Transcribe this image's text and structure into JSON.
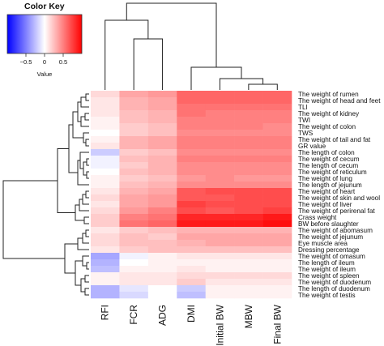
{
  "chart_data": {
    "type": "heatmap",
    "color_key": {
      "title": "Color Key",
      "xlabel": "Value",
      "ticks": [
        "−0.5",
        "0",
        "0.5"
      ],
      "range": [
        -1,
        1
      ],
      "colors": {
        "low": "#0000ff",
        "mid": "#ffffff",
        "high": "#ff0000"
      }
    },
    "columns": [
      "RFI",
      "FCR",
      "ADG",
      "DMI",
      "Initial BW",
      "MBW",
      "Final BW"
    ],
    "rows": [
      "The weight of rumen",
      "The weight of head and feet",
      "TLI",
      "The weight of kidney",
      "TWI",
      "The weight of colon",
      "TWS",
      "The weight of tail and fat",
      "GR value",
      "The length of colon",
      "The weight of cecum",
      "The length of cecum",
      "The weight of reticulum",
      "The weight of lung",
      "The length of jejunum",
      "The weight of heart",
      "The weight of skin and wool",
      "The weight of liver",
      "The weight of perirenal fat",
      "Crass weight",
      "BW before slaughter",
      "The weight of abomasum",
      "The weight of jejunum",
      "Eye muscle area",
      "Dressing percentage",
      "The weight of omasum",
      "The length of ileum",
      "The weight of ileum",
      "The weight of spleen",
      "The weight of duodenum",
      "The length of duodenum",
      "The weight of testis"
    ],
    "values": [
      [
        0.15,
        0.35,
        0.4,
        0.6,
        0.6,
        0.6,
        0.6
      ],
      [
        0.1,
        0.3,
        0.35,
        0.6,
        0.6,
        0.6,
        0.6
      ],
      [
        0.1,
        0.3,
        0.35,
        0.55,
        0.55,
        0.55,
        0.55
      ],
      [
        0.1,
        0.25,
        0.3,
        0.55,
        0.5,
        0.5,
        0.5
      ],
      [
        0.05,
        0.25,
        0.3,
        0.5,
        0.5,
        0.5,
        0.5
      ],
      [
        0.05,
        0.2,
        0.25,
        0.5,
        0.5,
        0.5,
        0.45
      ],
      [
        0.0,
        0.2,
        0.25,
        0.45,
        0.45,
        0.45,
        0.45
      ],
      [
        0.05,
        0.3,
        0.35,
        0.5,
        0.5,
        0.5,
        0.5
      ],
      [
        0.1,
        0.3,
        0.35,
        0.5,
        0.5,
        0.5,
        0.5
      ],
      [
        -0.2,
        0.2,
        0.25,
        0.45,
        0.45,
        0.45,
        0.45
      ],
      [
        -0.05,
        0.25,
        0.3,
        0.5,
        0.5,
        0.5,
        0.5
      ],
      [
        -0.05,
        0.2,
        0.3,
        0.45,
        0.45,
        0.45,
        0.45
      ],
      [
        0.0,
        0.25,
        0.3,
        0.45,
        0.45,
        0.45,
        0.45
      ],
      [
        0.05,
        0.2,
        0.25,
        0.4,
        0.45,
        0.4,
        0.4
      ],
      [
        0.05,
        0.25,
        0.3,
        0.45,
        0.45,
        0.45,
        0.45
      ],
      [
        0.1,
        0.3,
        0.35,
        0.65,
        0.7,
        0.7,
        0.7
      ],
      [
        0.15,
        0.35,
        0.4,
        0.65,
        0.65,
        0.7,
        0.7
      ],
      [
        0.1,
        0.35,
        0.4,
        0.75,
        0.7,
        0.7,
        0.7
      ],
      [
        0.15,
        0.4,
        0.5,
        0.7,
        0.65,
        0.7,
        0.75
      ],
      [
        0.2,
        0.5,
        0.55,
        0.85,
        0.85,
        0.85,
        0.9
      ],
      [
        0.2,
        0.55,
        0.6,
        0.9,
        0.9,
        0.9,
        0.95
      ],
      [
        0.1,
        0.2,
        0.25,
        0.3,
        0.3,
        0.3,
        0.3
      ],
      [
        0.15,
        0.25,
        0.2,
        0.35,
        0.35,
        0.35,
        0.35
      ],
      [
        0.15,
        0.25,
        0.25,
        0.3,
        0.35,
        0.35,
        0.35
      ],
      [
        0.1,
        0.2,
        0.25,
        0.25,
        0.25,
        0.25,
        0.25
      ],
      [
        -0.35,
        -0.05,
        0.05,
        0.1,
        0.1,
        0.1,
        0.1
      ],
      [
        -0.3,
        0.0,
        0.05,
        0.05,
        0.05,
        0.05,
        0.05
      ],
      [
        -0.25,
        0.05,
        0.05,
        0.1,
        0.05,
        0.05,
        0.05
      ],
      [
        0.05,
        0.1,
        0.1,
        0.15,
        0.15,
        0.15,
        0.15
      ],
      [
        0.05,
        0.1,
        0.1,
        0.2,
        0.1,
        0.1,
        0.1
      ],
      [
        -0.3,
        -0.1,
        0.0,
        -0.2,
        0.05,
        0.05,
        0.05
      ],
      [
        -0.3,
        -0.15,
        0.0,
        -0.25,
        0.05,
        0.05,
        0.05
      ]
    ],
    "legend": "top-left",
    "grid": false
  }
}
